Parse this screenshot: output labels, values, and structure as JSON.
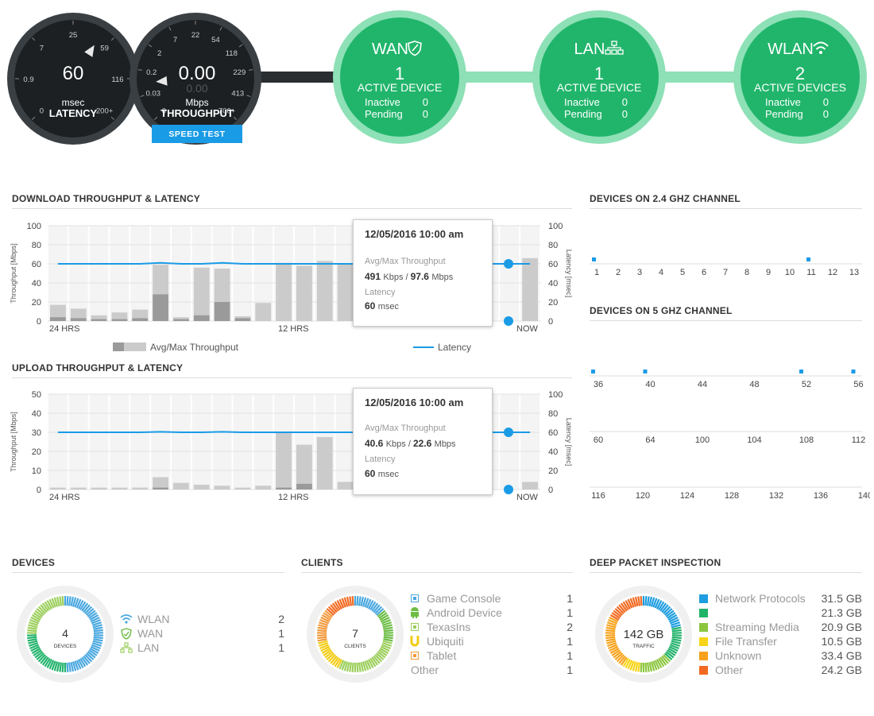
{
  "gauges": {
    "latency": {
      "value": "60",
      "unit": "msec",
      "label": "LATENCY",
      "ticks": [
        "0",
        "0.9",
        "7",
        "25",
        "59",
        "116",
        "200+"
      ],
      "level": 0.62
    },
    "throughput": {
      "value": "0.00",
      "ghost_value": "0.00",
      "unit": "Mbps",
      "label": "THROUGHPUT",
      "ticks": [
        "0",
        "0.03",
        "0.2",
        "2",
        "7",
        "22",
        "54",
        "118",
        "229",
        "413",
        "700+"
      ],
      "level": 0.15
    },
    "speed_test_label": "SPEED TEST"
  },
  "network": [
    {
      "title": "WAN",
      "icon": "shield-icon",
      "count": "1",
      "active_label": "ACTIVE DEVICE",
      "inactive_label": "Inactive",
      "inactive": "0",
      "pending_label": "Pending",
      "pending": "0"
    },
    {
      "title": "LAN",
      "icon": "network-icon",
      "count": "1",
      "active_label": "ACTIVE DEVICE",
      "inactive_label": "Inactive",
      "inactive": "0",
      "pending_label": "Pending",
      "pending": "0"
    },
    {
      "title": "WLAN",
      "icon": "wifi-icon",
      "count": "2",
      "active_label": "ACTIVE DEVICES",
      "inactive_label": "Inactive",
      "inactive": "0",
      "pending_label": "Pending",
      "pending": "0"
    }
  ],
  "download": {
    "title": "DOWNLOAD THROUGHPUT & LATENCY",
    "ylabel": "Throughput [Mbps]",
    "y2label": "Latency [msec]",
    "yticks": [
      "0",
      "20",
      "40",
      "60",
      "80",
      "100"
    ],
    "y2ticks": [
      "0",
      "20",
      "40",
      "60",
      "80",
      "100"
    ],
    "ymax": 100,
    "xlabels": [
      "24 HRS",
      "12 HRS",
      "NOW"
    ],
    "avg": [
      4,
      3,
      2,
      2,
      3,
      28,
      2,
      6,
      20,
      3,
      0,
      0,
      0,
      0,
      0,
      0,
      0,
      0,
      0,
      0,
      0,
      0,
      0,
      0
    ],
    "max": [
      17,
      13,
      6,
      9,
      12,
      59,
      4,
      56,
      55,
      5,
      19,
      61,
      58,
      63,
      60,
      61,
      59,
      0,
      0,
      0,
      0,
      0,
      0,
      66
    ],
    "latency": [
      60,
      60,
      60,
      60,
      60,
      61,
      60,
      60,
      61,
      60,
      60,
      60,
      60,
      60,
      60,
      60,
      60,
      60,
      60,
      60,
      60,
      60,
      60,
      60
    ],
    "tooltip": {
      "date": "12/05/2016 10:00 am",
      "th_label": "Avg/Max Throughput",
      "avg": "491",
      "avg_unit": "Kbps",
      "sep": " / ",
      "max": "97.6",
      "max_unit": "Mbps",
      "lat_label": "Latency",
      "lat": "60",
      "lat_unit": "msec"
    },
    "legend_throughput": "Avg/Max Throughput",
    "legend_latency": "Latency"
  },
  "upload": {
    "title": "UPLOAD THROUGHPUT & LATENCY",
    "ylabel": "Throughput [Mbps]",
    "y2label": "Latency [msec]",
    "yticks": [
      "0",
      "10",
      "20",
      "30",
      "40",
      "50"
    ],
    "y2ticks": [
      "0",
      "20",
      "40",
      "60",
      "80",
      "100"
    ],
    "ymax": 50,
    "xlabels": [
      "24 HRS",
      "12 HRS",
      "NOW"
    ],
    "avg": [
      0,
      0,
      0,
      0,
      0,
      1,
      0,
      0,
      0,
      0,
      0,
      1,
      3,
      0,
      0,
      0,
      0,
      0,
      0,
      0,
      0,
      0,
      0,
      0
    ],
    "max": [
      1,
      1,
      1,
      1,
      1,
      6.5,
      3.5,
      2.5,
      2,
      1,
      2,
      30,
      23.5,
      27.5,
      4,
      0,
      0,
      0,
      0,
      0,
      4,
      0,
      0,
      4
    ],
    "latency": [
      60,
      60,
      60,
      60,
      60,
      60.5,
      60,
      60,
      60.5,
      60,
      60,
      60,
      60,
      60,
      60,
      60,
      60,
      60,
      60,
      60,
      60,
      60,
      60,
      60
    ],
    "tooltip": {
      "date": "12/05/2016 10:00 am",
      "th_label": "Avg/Max Throughput",
      "avg": "40.6",
      "avg_unit": "Kbps",
      "sep": " / ",
      "max": "22.6",
      "max_unit": "Mbps",
      "lat_label": "Latency",
      "lat": "60",
      "lat_unit": "msec"
    }
  },
  "channels24": {
    "title": "DEVICES ON 2.4 GHZ CHANNEL",
    "channels": [
      "1",
      "2",
      "3",
      "4",
      "5",
      "6",
      "7",
      "8",
      "9",
      "10",
      "11",
      "12",
      "13"
    ],
    "occupied": [
      "1",
      "11"
    ]
  },
  "channels5": {
    "title": "DEVICES ON 5 GHZ CHANNEL",
    "rows": [
      [
        "36",
        "40",
        "44",
        "48",
        "52",
        "56"
      ],
      [
        "60",
        "64",
        "100",
        "104",
        "108",
        "112"
      ],
      [
        "116",
        "120",
        "124",
        "128",
        "132",
        "136",
        "140"
      ]
    ],
    "occupied": [
      "36",
      "40",
      "52",
      "56"
    ]
  },
  "devices": {
    "title": "DEVICES",
    "total": "4",
    "sublabel": "DEVICES",
    "items": [
      {
        "icon": "wifi-icon",
        "label": "WLAN",
        "value": "2"
      },
      {
        "icon": "shield-icon",
        "label": "WAN",
        "value": "1"
      },
      {
        "icon": "network-icon",
        "label": "LAN",
        "value": "1"
      }
    ]
  },
  "clients": {
    "title": "CLIENTS",
    "total": "7",
    "sublabel": "CLIENTS",
    "items": [
      {
        "icon": "game-console-icon",
        "label": "Game Console",
        "value": "1",
        "color": "#4aa8e0"
      },
      {
        "icon": "android-icon",
        "label": "Android Device",
        "value": "1",
        "color": "#6cbd45"
      },
      {
        "icon": "texas-instruments-icon",
        "label": "TexasIns",
        "value": "2",
        "color": "#9ccf5c"
      },
      {
        "icon": "ubiquiti-icon",
        "label": "Ubiquiti",
        "value": "1",
        "color": "#f2cc14"
      },
      {
        "icon": "tablet-icon",
        "label": "Tablet",
        "value": "1",
        "color": "#f29a3f"
      },
      {
        "icon": "",
        "label": "Other",
        "value": "1",
        "color": ""
      }
    ]
  },
  "dpi": {
    "title": "DEEP PACKET INSPECTION",
    "total": "142 GB",
    "sublabel": "TRAFFIC",
    "items": [
      {
        "label": "Network Protocols",
        "value": "31.5 GB",
        "color": "#1e9de0"
      },
      {
        "label": "",
        "value": "21.3 GB",
        "color": "#22b36b"
      },
      {
        "label": "Streaming Media",
        "value": "20.9 GB",
        "color": "#8cc63f"
      },
      {
        "label": "File Transfer",
        "value": "10.5 GB",
        "color": "#f7d417"
      },
      {
        "label": "Unknown",
        "value": "33.4 GB",
        "color": "#f7a21b"
      },
      {
        "label": "Other",
        "value": "24.2 GB",
        "color": "#f26a21"
      }
    ]
  },
  "colors": {
    "green": "#21b56b",
    "green_ring": "#8ee0b6",
    "gauge": "#1f2326",
    "blue": "#1a9be6",
    "bar_max": "#cbcbcb",
    "bar_avg": "#9a9a9a"
  }
}
